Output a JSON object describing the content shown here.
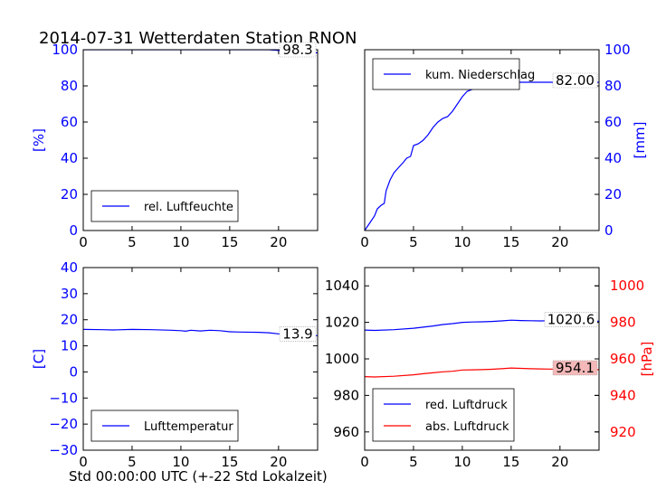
{
  "title": "2014-07-31 Wetterdaten Station RNON",
  "xlabel": "Std 00:00:00 UTC (+-22 Std Lokalzeit)",
  "colors": {
    "blue": "#0000ff",
    "red": "#ff0000",
    "black": "#000000",
    "label_box_red": "#f4b8b8"
  },
  "chart_data": [
    {
      "type": "line",
      "ylabel": "[%]",
      "xlim": [
        0,
        24
      ],
      "ylim": [
        0,
        100
      ],
      "xticks": [
        "0",
        "5",
        "10",
        "15",
        "20"
      ],
      "yticks": [
        "0",
        "20",
        "40",
        "60",
        "80",
        "100"
      ],
      "legend": "bottom-left",
      "value_label": "98.3",
      "series": [
        {
          "name": "rel. Luftfeuchte",
          "color": "#0000ff",
          "x": [
            0,
            2,
            4,
            6,
            8,
            10,
            12,
            14,
            16,
            18,
            19,
            20,
            20.5,
            21,
            22,
            23,
            24
          ],
          "y": [
            100,
            100,
            100,
            100,
            100,
            100,
            100,
            100,
            100,
            100,
            100,
            99.6,
            99.0,
            98.5,
            98.2,
            98.4,
            98.3
          ]
        }
      ]
    },
    {
      "type": "line",
      "ylabel": "[mm]",
      "xlim": [
        0,
        24
      ],
      "ylim": [
        0,
        100
      ],
      "xticks": [
        "0",
        "5",
        "10",
        "15",
        "20"
      ],
      "yticks": [
        "0",
        "20",
        "40",
        "60",
        "80",
        "100"
      ],
      "legend": "top-left",
      "value_label": "82.00",
      "series": [
        {
          "name": "kum. Niederschlag",
          "color": "#0000ff",
          "x": [
            0,
            0.5,
            1,
            1.3,
            1.7,
            2,
            2.2,
            2.6,
            3,
            3.5,
            4,
            4.3,
            4.7,
            5,
            5.5,
            6,
            6.5,
            7,
            7.5,
            8,
            8.5,
            9,
            9.5,
            10,
            10.5,
            11,
            11.5,
            12,
            13,
            15,
            18,
            20,
            22,
            24
          ],
          "y": [
            0,
            4,
            8,
            12,
            14,
            15,
            22,
            28,
            32,
            35,
            38,
            40,
            41,
            47,
            48,
            50,
            53,
            57,
            60,
            62,
            63,
            66,
            70,
            74,
            77,
            78,
            80,
            81,
            81.5,
            82,
            82,
            82,
            82,
            82
          ]
        }
      ]
    },
    {
      "type": "line",
      "ylabel": "[C]",
      "xlim": [
        0,
        24
      ],
      "ylim": [
        -30,
        40
      ],
      "xticks": [
        "0",
        "5",
        "10",
        "15",
        "20"
      ],
      "yticks": [
        "−30",
        "−20",
        "−10",
        "0",
        "10",
        "20",
        "30",
        "40"
      ],
      "legend": "bottom-left",
      "value_label": "13.9",
      "series": [
        {
          "name": "Lufttemperatur",
          "color": "#0000ff",
          "x": [
            0,
            2,
            3,
            5,
            7,
            9,
            10,
            10.5,
            11,
            12,
            13,
            14,
            15,
            16,
            18,
            19,
            20,
            21,
            22,
            23,
            24
          ],
          "y": [
            16.3,
            16.2,
            16.1,
            16.3,
            16.2,
            16.0,
            15.8,
            15.6,
            16.0,
            15.7,
            16.0,
            15.8,
            15.4,
            15.3,
            15.2,
            15.0,
            14.6,
            14.3,
            14.1,
            14.0,
            13.9
          ]
        }
      ]
    },
    {
      "type": "line",
      "ylabel_right": "[hPa]",
      "xlim": [
        0,
        24
      ],
      "ylim": [
        950,
        1050
      ],
      "ylim_right": [
        910,
        1010
      ],
      "xticks": [
        "0",
        "5",
        "10",
        "15",
        "20"
      ],
      "yticks": [
        "960",
        "980",
        "1000",
        "1020",
        "1040"
      ],
      "yticks_right": [
        "920",
        "940",
        "960",
        "980",
        "1000"
      ],
      "legend": "bottom-left",
      "value_labels": [
        "1020.6",
        "954.1"
      ],
      "series": [
        {
          "name": "red. Luftdruck",
          "color": "#0000ff",
          "axis": "left",
          "x": [
            0,
            1,
            3,
            5,
            6,
            7,
            8,
            9,
            10,
            11,
            12,
            13,
            14,
            15,
            16,
            17,
            18,
            19,
            20,
            21,
            22,
            23,
            24
          ],
          "y": [
            1015.8,
            1015.6,
            1016.0,
            1016.8,
            1017.4,
            1018.0,
            1018.8,
            1019.3,
            1020.0,
            1020.2,
            1020.3,
            1020.5,
            1020.8,
            1021.2,
            1021.0,
            1020.9,
            1020.8,
            1020.9,
            1020.8,
            1020.7,
            1020.7,
            1020.6,
            1020.6
          ]
        },
        {
          "name": "abs. Luftdruck",
          "color": "#ff0000",
          "axis": "right",
          "x": [
            0,
            1,
            3,
            5,
            6,
            7,
            8,
            9,
            10,
            11,
            12,
            13,
            14,
            15,
            16,
            17,
            18,
            19,
            20,
            21,
            22,
            23,
            24
          ],
          "y": [
            950.3,
            950.1,
            950.5,
            951.3,
            951.9,
            952.4,
            952.9,
            953.2,
            953.9,
            954.0,
            954.1,
            954.3,
            954.6,
            955.0,
            954.8,
            954.6,
            954.5,
            954.4,
            954.3,
            954.2,
            954.1,
            954.1,
            954.1
          ]
        }
      ]
    }
  ]
}
